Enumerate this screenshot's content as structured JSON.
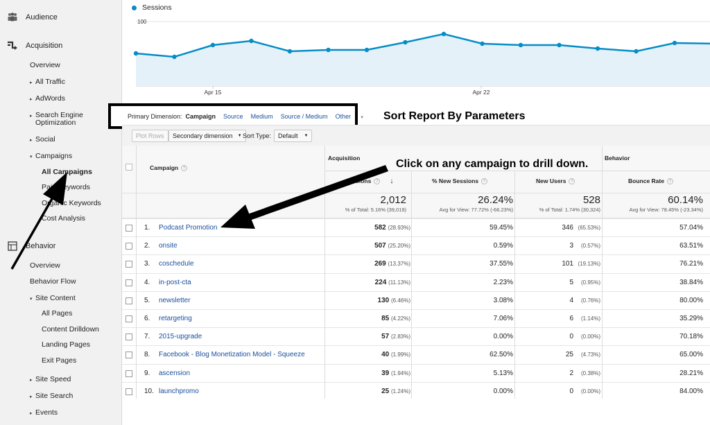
{
  "sidebar": {
    "audience": "Audience",
    "acquisition": "Acquisition",
    "behavior": "Behavior",
    "items": [
      {
        "label": "Overview",
        "tri": ""
      },
      {
        "label": "All Traffic",
        "tri": "▸"
      },
      {
        "label": "AdWords",
        "tri": "▸"
      },
      {
        "label": "Search Engine",
        "tri": "▸"
      },
      {
        "label": "Optimization",
        "tri": ""
      },
      {
        "label": "Social",
        "tri": "▸"
      },
      {
        "label": "Campaigns",
        "tri": "▾"
      },
      {
        "label": "All Campaigns",
        "tri": ""
      },
      {
        "label": "Paid Keywords",
        "tri": ""
      },
      {
        "label": "Organic Keywords",
        "tri": ""
      },
      {
        "label": "Cost Analysis",
        "tri": ""
      },
      {
        "label": "Overview",
        "tri": ""
      },
      {
        "label": "Behavior Flow",
        "tri": ""
      },
      {
        "label": "Site Content",
        "tri": "▾"
      },
      {
        "label": "All Pages",
        "tri": ""
      },
      {
        "label": "Content Drilldown",
        "tri": ""
      },
      {
        "label": "Landing Pages",
        "tri": ""
      },
      {
        "label": "Exit Pages",
        "tri": ""
      },
      {
        "label": "Site Speed",
        "tri": "▸"
      },
      {
        "label": "Site Search",
        "tri": "▸"
      },
      {
        "label": "Events",
        "tri": "▸"
      }
    ]
  },
  "chart_data": {
    "type": "line",
    "series": [
      {
        "name": "Sessions",
        "values": [
          54,
          49,
          66,
          72,
          57,
          59,
          59,
          70,
          82,
          68,
          66,
          66,
          61,
          57,
          69,
          68
        ]
      }
    ],
    "ylim": [
      0,
      130
    ],
    "yticks": [
      "100",
      "50"
    ],
    "xlabels": [
      "Apr 15",
      "Apr 22"
    ],
    "color": "#058dc7"
  },
  "dimension": {
    "label": "Primary Dimension:",
    "active": "Campaign",
    "links": [
      "Source",
      "Medium",
      "Source / Medium",
      "Other"
    ]
  },
  "annotations": {
    "sort": "Sort Report By Parameters",
    "drill": "Click on any campaign to drill down."
  },
  "toolbar": {
    "plot_rows": "Plot Rows",
    "secondary": "Secondary dimension",
    "sort_type_label": "Sort Type:",
    "sort_type_value": "Default"
  },
  "table": {
    "group_acquisition": "Acquisition",
    "group_behavior": "Behavior",
    "col_campaign": "Campaign",
    "col_sessions": "Sessions",
    "col_new_sessions": "% New Sessions",
    "col_new_users": "New Users",
    "col_bounce": "Bounce Rate",
    "totals": {
      "sessions": "2,012",
      "sessions_sub": "% of Total: 5.16% (39,019)",
      "new_sessions": "26.24%",
      "new_sessions_sub": "Avg for View: 77.72% (-66.23%)",
      "new_users": "528",
      "new_users_sub": "% of Total: 1.74% (30,324)",
      "bounce": "60.14%",
      "bounce_sub": "Avg for View: 78.45% (-23.34%)"
    },
    "rows": [
      {
        "n": "1.",
        "name": "Podcast Promotion",
        "sessions": "582",
        "s_pct": "(28.93%)",
        "new_sessions": "59.45%",
        "users": "346",
        "u_pct": "(65.53%)",
        "bounce": "57.04%"
      },
      {
        "n": "2.",
        "name": "onsite",
        "sessions": "507",
        "s_pct": "(25.20%)",
        "new_sessions": "0.59%",
        "users": "3",
        "u_pct": "(0.57%)",
        "bounce": "63.51%"
      },
      {
        "n": "3.",
        "name": "coschedule",
        "sessions": "269",
        "s_pct": "(13.37%)",
        "new_sessions": "37.55%",
        "users": "101",
        "u_pct": "(19.13%)",
        "bounce": "76.21%"
      },
      {
        "n": "4.",
        "name": "in-post-cta",
        "sessions": "224",
        "s_pct": "(11.13%)",
        "new_sessions": "2.23%",
        "users": "5",
        "u_pct": "(0.95%)",
        "bounce": "38.84%"
      },
      {
        "n": "5.",
        "name": "newsletter",
        "sessions": "130",
        "s_pct": "(6.46%)",
        "new_sessions": "3.08%",
        "users": "4",
        "u_pct": "(0.76%)",
        "bounce": "80.00%"
      },
      {
        "n": "6.",
        "name": "retargeting",
        "sessions": "85",
        "s_pct": "(4.22%)",
        "new_sessions": "7.06%",
        "users": "6",
        "u_pct": "(1.14%)",
        "bounce": "35.29%"
      },
      {
        "n": "7.",
        "name": "2015-upgrade",
        "sessions": "57",
        "s_pct": "(2.83%)",
        "new_sessions": "0.00%",
        "users": "0",
        "u_pct": "(0.00%)",
        "bounce": "70.18%"
      },
      {
        "n": "8.",
        "name": "Facebook - Blog Monetization Model - Squeeze",
        "sessions": "40",
        "s_pct": "(1.99%)",
        "new_sessions": "62.50%",
        "users": "25",
        "u_pct": "(4.73%)",
        "bounce": "65.00%"
      },
      {
        "n": "9.",
        "name": "ascension",
        "sessions": "39",
        "s_pct": "(1.94%)",
        "new_sessions": "5.13%",
        "users": "2",
        "u_pct": "(0.38%)",
        "bounce": "28.21%"
      },
      {
        "n": "10.",
        "name": "launchpromo",
        "sessions": "25",
        "s_pct": "(1.24%)",
        "new_sessions": "0.00%",
        "users": "0",
        "u_pct": "(0.00%)",
        "bounce": "84.00%"
      }
    ]
  }
}
